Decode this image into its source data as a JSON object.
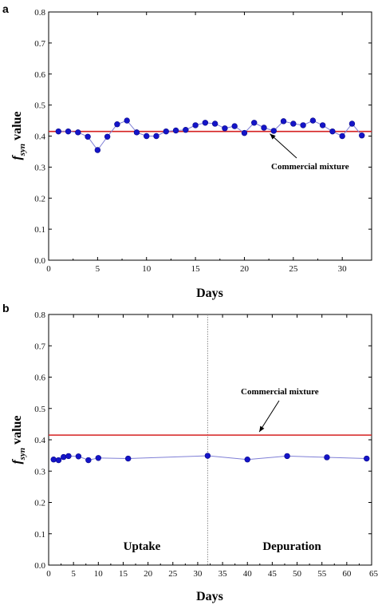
{
  "chart_data": [
    {
      "panel_label": "a",
      "type": "line",
      "xlabel": "Days",
      "ylabel_main": "f",
      "ylabel_sub": "syn",
      "ylabel_rest": "value",
      "xlim": [
        0,
        33
      ],
      "ylim": [
        0.0,
        0.8
      ],
      "xticks": [
        0,
        5,
        10,
        15,
        20,
        25,
        30
      ],
      "yticks": [
        0.0,
        0.1,
        0.2,
        0.3,
        0.4,
        0.5,
        0.6,
        0.7,
        0.8
      ],
      "ytick_labels": [
        "0.0",
        "0.1",
        "0.2",
        "0.3",
        "0.4",
        "0.5",
        "0.6",
        "0.7",
        "0.8"
      ],
      "series": [
        {
          "x": [
            1,
            2,
            3,
            4,
            5,
            6,
            7,
            8,
            9,
            10,
            11,
            12,
            13,
            14,
            15,
            16,
            17,
            18,
            19,
            20,
            21,
            22,
            23,
            24,
            25,
            26,
            27,
            28,
            29,
            30,
            31,
            32
          ],
          "y": [
            0.415,
            0.415,
            0.412,
            0.398,
            0.355,
            0.398,
            0.438,
            0.45,
            0.412,
            0.4,
            0.4,
            0.415,
            0.418,
            0.42,
            0.435,
            0.443,
            0.44,
            0.425,
            0.432,
            0.41,
            0.443,
            0.427,
            0.417,
            0.448,
            0.44,
            0.435,
            0.45,
            0.435,
            0.415,
            0.4,
            0.44,
            0.402
          ],
          "color": "#1414c8",
          "line_color": "#7f7fd6"
        }
      ],
      "reference_line": {
        "y": 0.415,
        "color": "#d42020",
        "label": "Commercial mixture"
      },
      "annotation": {
        "text": "Commercial mixture",
        "arrow_to": [
          20,
          0.415
        ]
      }
    },
    {
      "panel_label": "b",
      "type": "line",
      "xlabel": "Days",
      "ylabel_main": "f",
      "ylabel_sub": "syn",
      "ylabel_rest": "value",
      "xlim": [
        0,
        65
      ],
      "ylim": [
        0.0,
        0.8
      ],
      "xticks": [
        0,
        5,
        10,
        15,
        20,
        25,
        30,
        35,
        40,
        45,
        50,
        55,
        60,
        65
      ],
      "xtick_labels": [
        "0",
        "5",
        "10",
        "15",
        "20",
        "25",
        "30",
        "35",
        "40",
        "45",
        "50",
        "55",
        "60",
        "65"
      ],
      "yticks": [
        0.0,
        0.1,
        0.2,
        0.3,
        0.4,
        0.5,
        0.6,
        0.7,
        0.8
      ],
      "ytick_labels": [
        "0.0",
        "0.1",
        "0.2",
        "0.3",
        "0.4",
        "0.5",
        "0.6",
        "0.7",
        "0.8"
      ],
      "series": [
        {
          "x": [
            1,
            2,
            3,
            4,
            6,
            8,
            10,
            16,
            32,
            40,
            48,
            56,
            64
          ],
          "y": [
            0.337,
            0.335,
            0.345,
            0.348,
            0.347,
            0.335,
            0.342,
            0.34,
            0.349,
            0.337,
            0.348,
            0.344,
            0.34
          ],
          "color": "#1414c8",
          "line_color": "#7f7fd6"
        }
      ],
      "reference_line": {
        "y": 0.415,
        "color": "#d42020",
        "label": "Commercial mixture"
      },
      "annotation": {
        "text": "Commercial mixture",
        "arrow_to": [
          44,
          0.42
        ]
      },
      "divider_x": 32,
      "regions": [
        "Uptake",
        "Depuration"
      ]
    }
  ]
}
